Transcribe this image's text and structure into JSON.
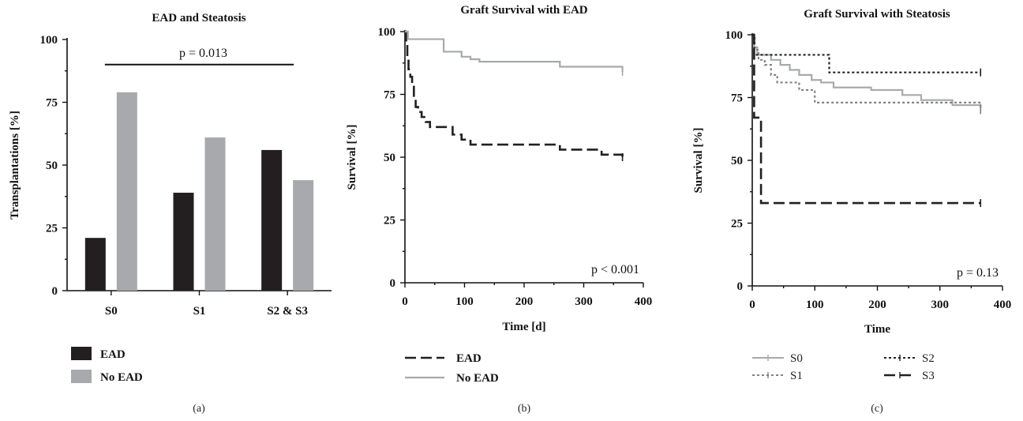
{
  "chart_data": [
    {
      "type": "bar",
      "panel_label": "(a)",
      "title": "EAD and Steatosis",
      "ylabel": "Transplantations [%]",
      "xlabel": "",
      "categories": [
        "S0",
        "S1",
        "S2 & S3"
      ],
      "ylim": [
        0,
        100
      ],
      "yticks": [
        0,
        25,
        50,
        75,
        100
      ],
      "series": [
        {
          "name": "EAD",
          "values": [
            21,
            39,
            56
          ],
          "color": "#231f20"
        },
        {
          "name": "No EAD",
          "values": [
            79,
            61,
            44
          ],
          "color": "#a7a9ac"
        }
      ],
      "annotation": "p = 0.013",
      "legend_position": "bottom-left"
    },
    {
      "type": "line",
      "panel_label": "(b)",
      "title": "Graft Survival with EAD",
      "ylabel": "Survival [%]",
      "xlabel": "Time [d]",
      "xlim": [
        0,
        400
      ],
      "ylim": [
        0,
        100
      ],
      "xticks": [
        0,
        100,
        200,
        300,
        400
      ],
      "yticks": [
        0,
        25,
        50,
        75,
        100
      ],
      "annotation": "p < 0.001",
      "legend_position": "bottom-left",
      "series": [
        {
          "name": "EAD",
          "style": "dashed",
          "color": "#231f20",
          "points": [
            [
              0,
              100
            ],
            [
              2,
              95
            ],
            [
              4,
              90
            ],
            [
              6,
              85
            ],
            [
              9,
              82
            ],
            [
              12,
              78
            ],
            [
              15,
              74
            ],
            [
              18,
              70
            ],
            [
              22,
              68
            ],
            [
              28,
              66
            ],
            [
              35,
              64
            ],
            [
              42,
              62
            ],
            [
              70,
              62
            ],
            [
              80,
              59
            ],
            [
              95,
              57
            ],
            [
              110,
              55
            ],
            [
              240,
              55
            ],
            [
              260,
              53
            ],
            [
              310,
              53
            ],
            [
              330,
              51
            ],
            [
              360,
              51
            ],
            [
              365,
              50
            ]
          ]
        },
        {
          "name": "No EAD",
          "style": "solid",
          "color": "#a7a9ac",
          "points": [
            [
              0,
              100
            ],
            [
              5,
              97
            ],
            [
              60,
              97
            ],
            [
              65,
              92
            ],
            [
              90,
              92
            ],
            [
              95,
              90
            ],
            [
              110,
              89
            ],
            [
              125,
              88
            ],
            [
              240,
              88
            ],
            [
              260,
              86
            ],
            [
              360,
              86
            ],
            [
              365,
              84
            ]
          ]
        }
      ]
    },
    {
      "type": "line",
      "panel_label": "(c)",
      "title": "Graft Survival with Steatosis",
      "ylabel": "Survival [%]",
      "xlabel": "Time",
      "xlim": [
        0,
        400
      ],
      "ylim": [
        0,
        100
      ],
      "xticks": [
        0,
        100,
        200,
        300,
        400
      ],
      "yticks": [
        0,
        25,
        50,
        75,
        100
      ],
      "annotation": "p = 0.13",
      "legend_position": "bottom-left",
      "series": [
        {
          "name": "S0",
          "style": "solid",
          "color": "#a7a9ac",
          "points": [
            [
              0,
              100
            ],
            [
              3,
              95
            ],
            [
              8,
              92
            ],
            [
              20,
              92
            ],
            [
              30,
              90
            ],
            [
              45,
              88
            ],
            [
              60,
              86
            ],
            [
              75,
              84
            ],
            [
              95,
              82
            ],
            [
              110,
              81
            ],
            [
              130,
              79
            ],
            [
              180,
              79
            ],
            [
              190,
              78
            ],
            [
              230,
              78
            ],
            [
              240,
              76
            ],
            [
              270,
              74
            ],
            [
              300,
              74
            ],
            [
              320,
              72
            ],
            [
              360,
              72
            ],
            [
              365,
              71
            ]
          ]
        },
        {
          "name": "S1",
          "style": "dotted",
          "color": "#808285",
          "points": [
            [
              0,
              100
            ],
            [
              4,
              94
            ],
            [
              10,
              90
            ],
            [
              20,
              88
            ],
            [
              30,
              84
            ],
            [
              40,
              81
            ],
            [
              70,
              81
            ],
            [
              75,
              78
            ],
            [
              90,
              78
            ],
            [
              100,
              73
            ],
            [
              360,
              73
            ],
            [
              365,
              70
            ]
          ]
        },
        {
          "name": "S2",
          "style": "dotted",
          "color": "#231f20",
          "points": [
            [
              0,
              100
            ],
            [
              3,
              92
            ],
            [
              120,
              92
            ],
            [
              123,
              85
            ],
            [
              365,
              85
            ]
          ]
        },
        {
          "name": "S3",
          "style": "dashed",
          "color": "#231f20",
          "points": [
            [
              0,
              100
            ],
            [
              3,
              67
            ],
            [
              12,
              67
            ],
            [
              14,
              33
            ],
            [
              365,
              33
            ]
          ]
        }
      ]
    }
  ]
}
